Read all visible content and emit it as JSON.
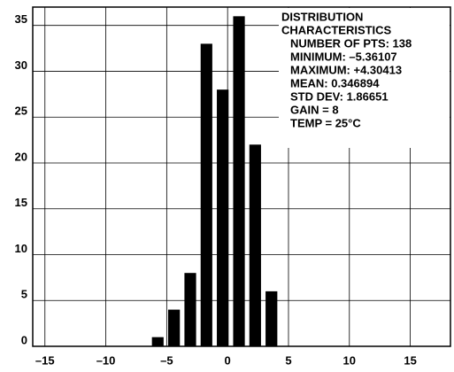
{
  "chart_data": {
    "type": "histogram",
    "bins": [
      -6.4,
      -5.07,
      -3.73,
      -2.4,
      -1.07,
      0.27,
      1.6,
      2.93,
      4.27
    ],
    "values": [
      1,
      4,
      8,
      33,
      28,
      36,
      22,
      6
    ],
    "color": "#000000",
    "xlim": [
      -16,
      18.3
    ],
    "ylim": [
      0,
      37
    ],
    "xticks": [
      {
        "value": -15,
        "label": "–15"
      },
      {
        "value": -10,
        "label": "–10"
      },
      {
        "value": -5,
        "label": "–5"
      },
      0,
      5,
      10,
      15
    ],
    "yticks": [
      0,
      5,
      10,
      15,
      20,
      25,
      30,
      35
    ],
    "grid": true,
    "annotation": {
      "title": [
        "DISTRIBUTION",
        "CHARACTERISTICS"
      ],
      "lines": [
        "NUMBER OF PTS: 138",
        "MINIMUM: –5.36107",
        "MAXIMUM: +4.30413",
        "MEAN: 0.346894",
        "STD DEV: 1.86651",
        "GAIN = 8",
        "TEMP = 25°C"
      ]
    }
  }
}
